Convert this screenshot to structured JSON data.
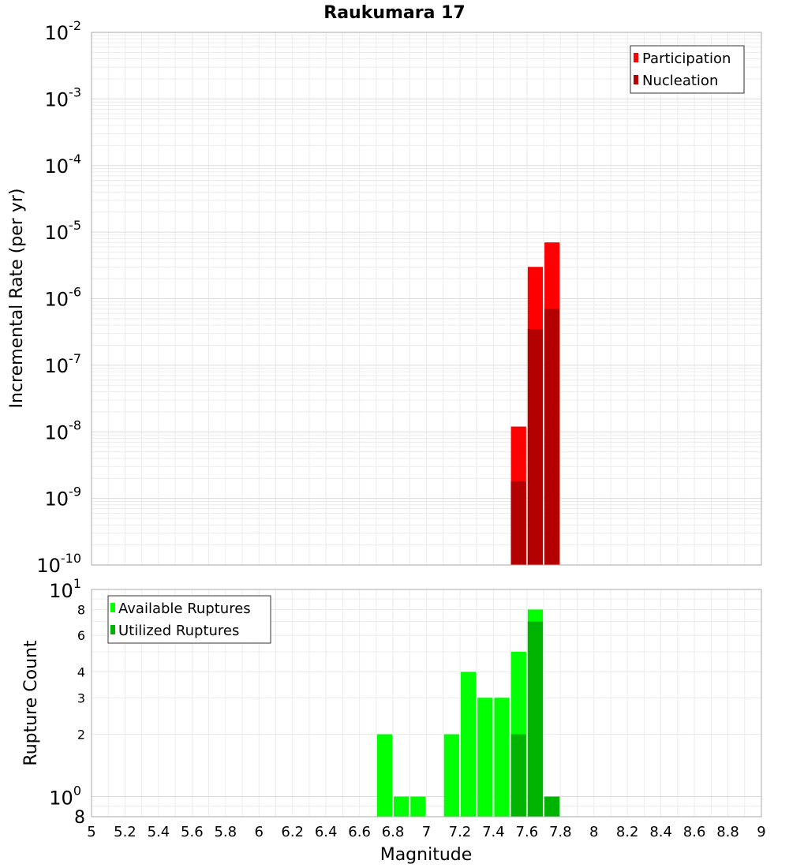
{
  "title": "Raukumara 17",
  "chart_data": [
    {
      "type": "bar",
      "scale": "log",
      "ylabel": "Incremental Rate (per yr)",
      "ylim": [
        1e-10,
        0.01
      ],
      "yticks": [
        {
          "base": "10",
          "exp": "-2"
        },
        {
          "base": "10",
          "exp": "-3"
        },
        {
          "base": "10",
          "exp": "-4"
        },
        {
          "base": "10",
          "exp": "-5"
        },
        {
          "base": "10",
          "exp": "-6"
        },
        {
          "base": "10",
          "exp": "-7"
        },
        {
          "base": "10",
          "exp": "-8"
        },
        {
          "base": "10",
          "exp": "-9"
        },
        {
          "base": "10",
          "exp": "-10"
        }
      ],
      "grid": true,
      "legend": "top-right",
      "series": [
        {
          "name": "Participation",
          "color": "#ff0000",
          "x": [
            7.55,
            7.65,
            7.75
          ],
          "values": [
            1.2e-08,
            3e-06,
            7e-06
          ]
        },
        {
          "name": "Nucleation",
          "color": "#b30000",
          "x": [
            7.55,
            7.65,
            7.75
          ],
          "values": [
            1.8e-09,
            3.5e-07,
            7e-07
          ]
        }
      ]
    },
    {
      "type": "bar",
      "scale": "log",
      "ylabel": "Rupture Count",
      "xlabel": "Magnitude",
      "ylim": [
        0.8,
        10
      ],
      "ytick_labels": [
        {
          "v": 8,
          "text": "8"
        },
        {
          "v": 6,
          "text": "6"
        },
        {
          "v": 4,
          "text": "4"
        },
        {
          "v": 3,
          "text": "3"
        },
        {
          "v": 2,
          "text": "2"
        }
      ],
      "y_decades": [
        {
          "v": 10,
          "base": "10",
          "exp": "1"
        },
        {
          "v": 1,
          "base": "10",
          "exp": "0"
        }
      ],
      "y_bottom_label": "8",
      "xlim": [
        5,
        9
      ],
      "xticks": [
        "5",
        "5.2",
        "5.4",
        "5.6",
        "5.8",
        "6",
        "6.2",
        "6.4",
        "6.6",
        "6.8",
        "7",
        "7.2",
        "7.4",
        "7.6",
        "7.8",
        "8",
        "8.2",
        "8.4",
        "8.6",
        "8.8",
        "9"
      ],
      "grid": true,
      "legend": "top-left",
      "series": [
        {
          "name": "Available Ruptures",
          "color": "#00ff00",
          "x": [
            6.75,
            6.85,
            6.95,
            7.15,
            7.25,
            7.35,
            7.45,
            7.55,
            7.65,
            7.75
          ],
          "values": [
            2,
            1,
            1,
            2,
            4,
            3,
            3,
            5,
            8,
            1
          ]
        },
        {
          "name": "Utilized Ruptures",
          "color": "#00b300",
          "x": [
            7.55,
            7.65,
            7.75
          ],
          "values": [
            2,
            7,
            1
          ]
        }
      ]
    }
  ]
}
